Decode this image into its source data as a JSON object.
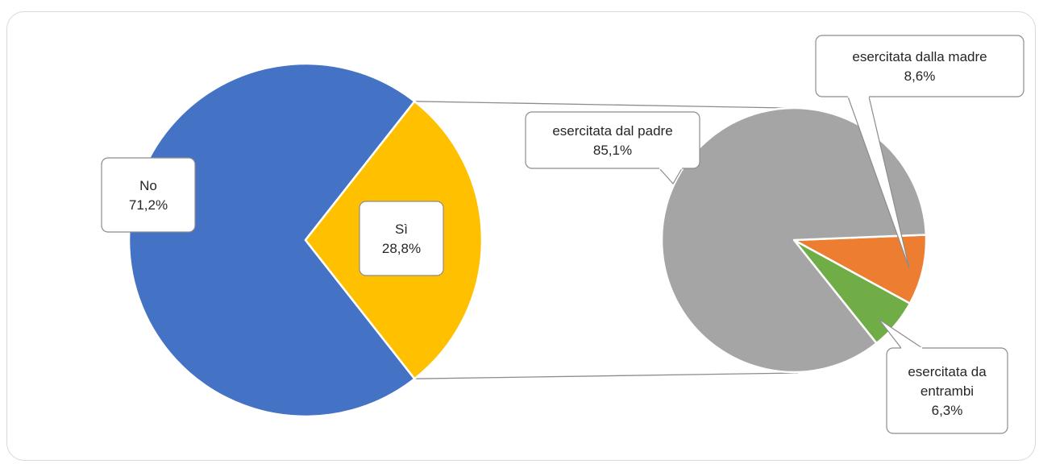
{
  "chart_data": {
    "type": "bar-of-pie",
    "primary": {
      "slices": [
        {
          "label": "No",
          "value": 71.2,
          "value_label": "71,2%",
          "color": "#4472C4"
        },
        {
          "label": "Sì",
          "value": 28.8,
          "value_label": "28,8%",
          "color": "#FFC000"
        }
      ]
    },
    "secondary": {
      "slices": [
        {
          "label": "esercitata dal padre",
          "value": 85.1,
          "value_label": "85,1%",
          "color": "#A5A5A5"
        },
        {
          "label": "esercitata dalla madre",
          "value": 8.6,
          "value_label": "8,6%",
          "color": "#ED7D31"
        },
        {
          "label": "esercitata da entrambi",
          "value": 6.3,
          "value_label": "6,3%",
          "color": "#70AD47"
        }
      ]
    }
  }
}
